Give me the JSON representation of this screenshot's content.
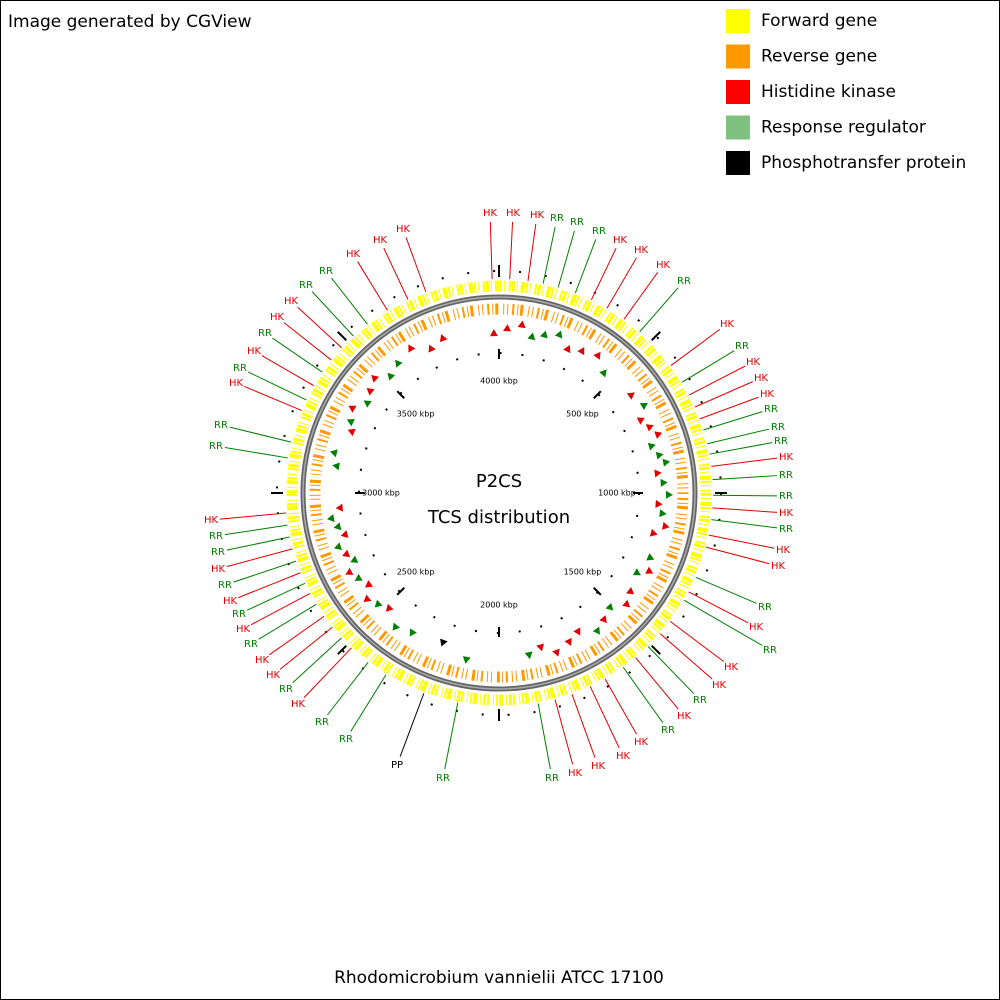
{
  "header": {
    "credit": "Image generated by CGView"
  },
  "legend": [
    {
      "name": "Forward gene",
      "color": "#ffff00"
    },
    {
      "name": "Reverse gene",
      "color": "#ff9900"
    },
    {
      "name": "Histidine kinase",
      "color": "#ff0000"
    },
    {
      "name": "Response regulator",
      "color": "#80c080"
    },
    {
      "name": "Phosphotransfer protein",
      "color": "#000000"
    }
  ],
  "map": {
    "center_title": "P2CS",
    "center_subtitle": "TCS distribution",
    "title": "Rhodomicrobium vannielii ATCC 17100",
    "position_labels": [
      "4000 kbp",
      "500 kbp",
      "1000 kbp",
      "1500 kbp",
      "2000 kbp",
      "2500 kbp",
      "3000 kbp",
      "3500 kbp"
    ],
    "features": [
      {
        "label": "HK",
        "color": "#e00000"
      },
      {
        "label": "HK",
        "color": "#e00000"
      },
      {
        "label": "HK",
        "color": "#e00000"
      },
      {
        "label": "RR",
        "color": "#008000"
      },
      {
        "label": "RR",
        "color": "#008000"
      },
      {
        "label": "RR",
        "color": "#008000"
      },
      {
        "label": "HK",
        "color": "#e00000"
      },
      {
        "label": "HK",
        "color": "#e00000"
      },
      {
        "label": "HK",
        "color": "#e00000"
      },
      {
        "label": "RR",
        "color": "#008000"
      },
      {
        "label": "HK",
        "color": "#e00000"
      },
      {
        "label": "RR",
        "color": "#008000"
      },
      {
        "label": "HK",
        "color": "#e00000"
      },
      {
        "label": "HK",
        "color": "#e00000"
      },
      {
        "label": "HK",
        "color": "#e00000"
      },
      {
        "label": "RR",
        "color": "#008000"
      },
      {
        "label": "RR",
        "color": "#008000"
      },
      {
        "label": "RR",
        "color": "#008000"
      },
      {
        "label": "HK",
        "color": "#e00000"
      },
      {
        "label": "RR",
        "color": "#008000"
      },
      {
        "label": "RR",
        "color": "#008000"
      },
      {
        "label": "HK",
        "color": "#e00000"
      },
      {
        "label": "RR",
        "color": "#008000"
      },
      {
        "label": "HK",
        "color": "#e00000"
      },
      {
        "label": "HK",
        "color": "#e00000"
      },
      {
        "label": "RR",
        "color": "#008000"
      },
      {
        "label": "HK",
        "color": "#e00000"
      },
      {
        "label": "RR",
        "color": "#008000"
      },
      {
        "label": "HK",
        "color": "#e00000"
      },
      {
        "label": "HK",
        "color": "#e00000"
      },
      {
        "label": "RR",
        "color": "#008000"
      },
      {
        "label": "HK",
        "color": "#e00000"
      },
      {
        "label": "RR",
        "color": "#008000"
      },
      {
        "label": "HK",
        "color": "#e00000"
      },
      {
        "label": "HK",
        "color": "#e00000"
      },
      {
        "label": "HK",
        "color": "#e00000"
      },
      {
        "label": "HK",
        "color": "#e00000"
      },
      {
        "label": "RR",
        "color": "#008000"
      },
      {
        "label": "RR",
        "color": "#008000"
      },
      {
        "label": "PP",
        "color": "#000000"
      },
      {
        "label": "RR",
        "color": "#008000"
      },
      {
        "label": "RR",
        "color": "#008000"
      },
      {
        "label": "HK",
        "color": "#e00000"
      },
      {
        "label": "RR",
        "color": "#008000"
      },
      {
        "label": "HK",
        "color": "#e00000"
      },
      {
        "label": "HK",
        "color": "#e00000"
      },
      {
        "label": "RR",
        "color": "#008000"
      },
      {
        "label": "HK",
        "color": "#e00000"
      },
      {
        "label": "RR",
        "color": "#008000"
      },
      {
        "label": "HK",
        "color": "#e00000"
      },
      {
        "label": "RR",
        "color": "#008000"
      },
      {
        "label": "HK",
        "color": "#e00000"
      },
      {
        "label": "RR",
        "color": "#008000"
      },
      {
        "label": "RR",
        "color": "#008000"
      },
      {
        "label": "HK",
        "color": "#e00000"
      },
      {
        "label": "RR",
        "color": "#008000"
      },
      {
        "label": "RR",
        "color": "#008000"
      },
      {
        "label": "HK",
        "color": "#e00000"
      },
      {
        "label": "RR",
        "color": "#008000"
      },
      {
        "label": "HK",
        "color": "#e00000"
      },
      {
        "label": "RR",
        "color": "#008000"
      },
      {
        "label": "HK",
        "color": "#e00000"
      },
      {
        "label": "HK",
        "color": "#e00000"
      },
      {
        "label": "RR",
        "color": "#008000"
      },
      {
        "label": "RR",
        "color": "#008000"
      },
      {
        "label": "HK",
        "color": "#e00000"
      },
      {
        "label": "HK",
        "color": "#e00000"
      },
      {
        "label": "HK",
        "color": "#e00000"
      }
    ]
  }
}
